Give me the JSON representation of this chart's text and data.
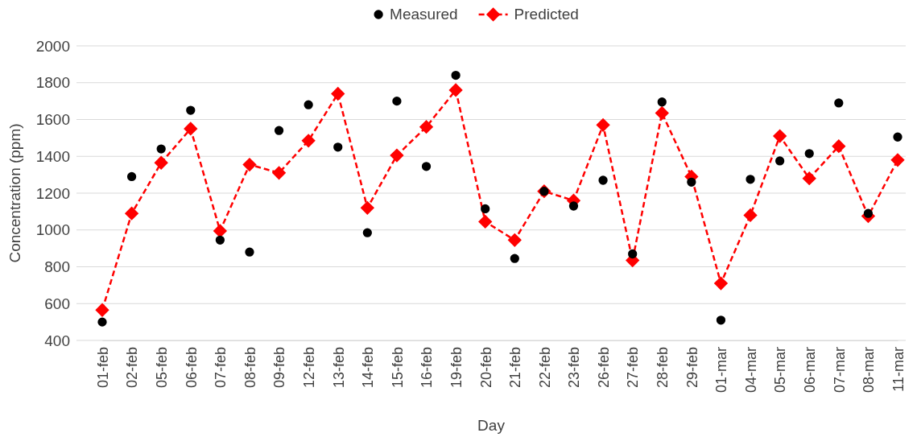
{
  "chart_data": {
    "type": "line",
    "xlabel": "Day",
    "ylabel": "Concentration (ppm)",
    "categories": [
      "01-feb",
      "02-feb",
      "05-feb",
      "06-feb",
      "07-feb",
      "08-feb",
      "09-feb",
      "12-feb",
      "13-feb",
      "14-feb",
      "15-feb",
      "16-feb",
      "19-feb",
      "20-feb",
      "21-feb",
      "22-feb",
      "23-feb",
      "26-feb",
      "27-feb",
      "28-feb",
      "29-feb",
      "01-mar",
      "04-mar",
      "05-mar",
      "06-mar",
      "07-mar",
      "08-mar",
      "11-mar"
    ],
    "series": [
      {
        "name": "Measured",
        "type": "scatter",
        "marker": "circle",
        "color": "#000000",
        "values": [
          500,
          1290,
          1440,
          1650,
          945,
          880,
          1540,
          1680,
          1450,
          985,
          1700,
          1345,
          1840,
          1115,
          845,
          1210,
          1130,
          1270,
          870,
          1695,
          1260,
          510,
          1275,
          1375,
          1415,
          1690,
          1090,
          1505
        ]
      },
      {
        "name": "Predicted",
        "marker": "diamond",
        "line_style": "dashed",
        "color": "#ff0000",
        "values": [
          565,
          1090,
          1365,
          1550,
          995,
          1355,
          1310,
          1485,
          1740,
          1120,
          1405,
          1560,
          1760,
          1045,
          945,
          1210,
          1160,
          1570,
          835,
          1635,
          1290,
          710,
          1080,
          1510,
          1280,
          1455,
          1075,
          1380
        ]
      }
    ],
    "ylim": [
      400,
      2000
    ],
    "yticks": [
      400,
      600,
      800,
      1000,
      1200,
      1400,
      1600,
      1800,
      2000
    ],
    "grid": "y",
    "legend": "top"
  }
}
